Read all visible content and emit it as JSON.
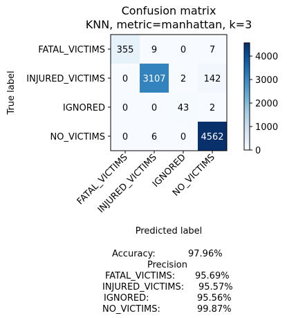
{
  "chart_data": {
    "type": "heatmap",
    "title": "Confusion matrix",
    "subtitle": "KNN, metric=manhattan, k=3",
    "xlabel": "Predicted label",
    "ylabel": "True label",
    "row_labels": [
      "FATAL_VICTIMS",
      "INJURED_VICTIMS",
      "IGNORED",
      "NO_VICTIMS"
    ],
    "col_labels": [
      "FATAL_VICTIMS",
      "INJURED_VICTIMS",
      "IGNORED",
      "NO_VICTIMS"
    ],
    "values": [
      [
        355,
        9,
        0,
        7
      ],
      [
        0,
        3107,
        2,
        142
      ],
      [
        0,
        0,
        43,
        2
      ],
      [
        0,
        6,
        0,
        4562
      ]
    ],
    "colorbar": {
      "colormap": "Blues",
      "vmin": 0,
      "vmax": 4562,
      "ticks": [
        0,
        1000,
        2000,
        3000,
        4000
      ],
      "tick_labels": [
        "0",
        "1000",
        "2000",
        "3000",
        "4000"
      ]
    }
  },
  "summary": {
    "accuracy_label": "Accuracy:",
    "accuracy_value": "97.96%",
    "precision_header": "Precision",
    "precision_rows": [
      {
        "label": "FATAL_VICTIMS:",
        "value": "95.69%"
      },
      {
        "label": "INJURED_VICTIMS:",
        "value": "95.57%"
      },
      {
        "label": "IGNORED:",
        "value": "95.56%"
      },
      {
        "label": "NO_VICTIMS:",
        "value": "99.87%"
      }
    ]
  }
}
